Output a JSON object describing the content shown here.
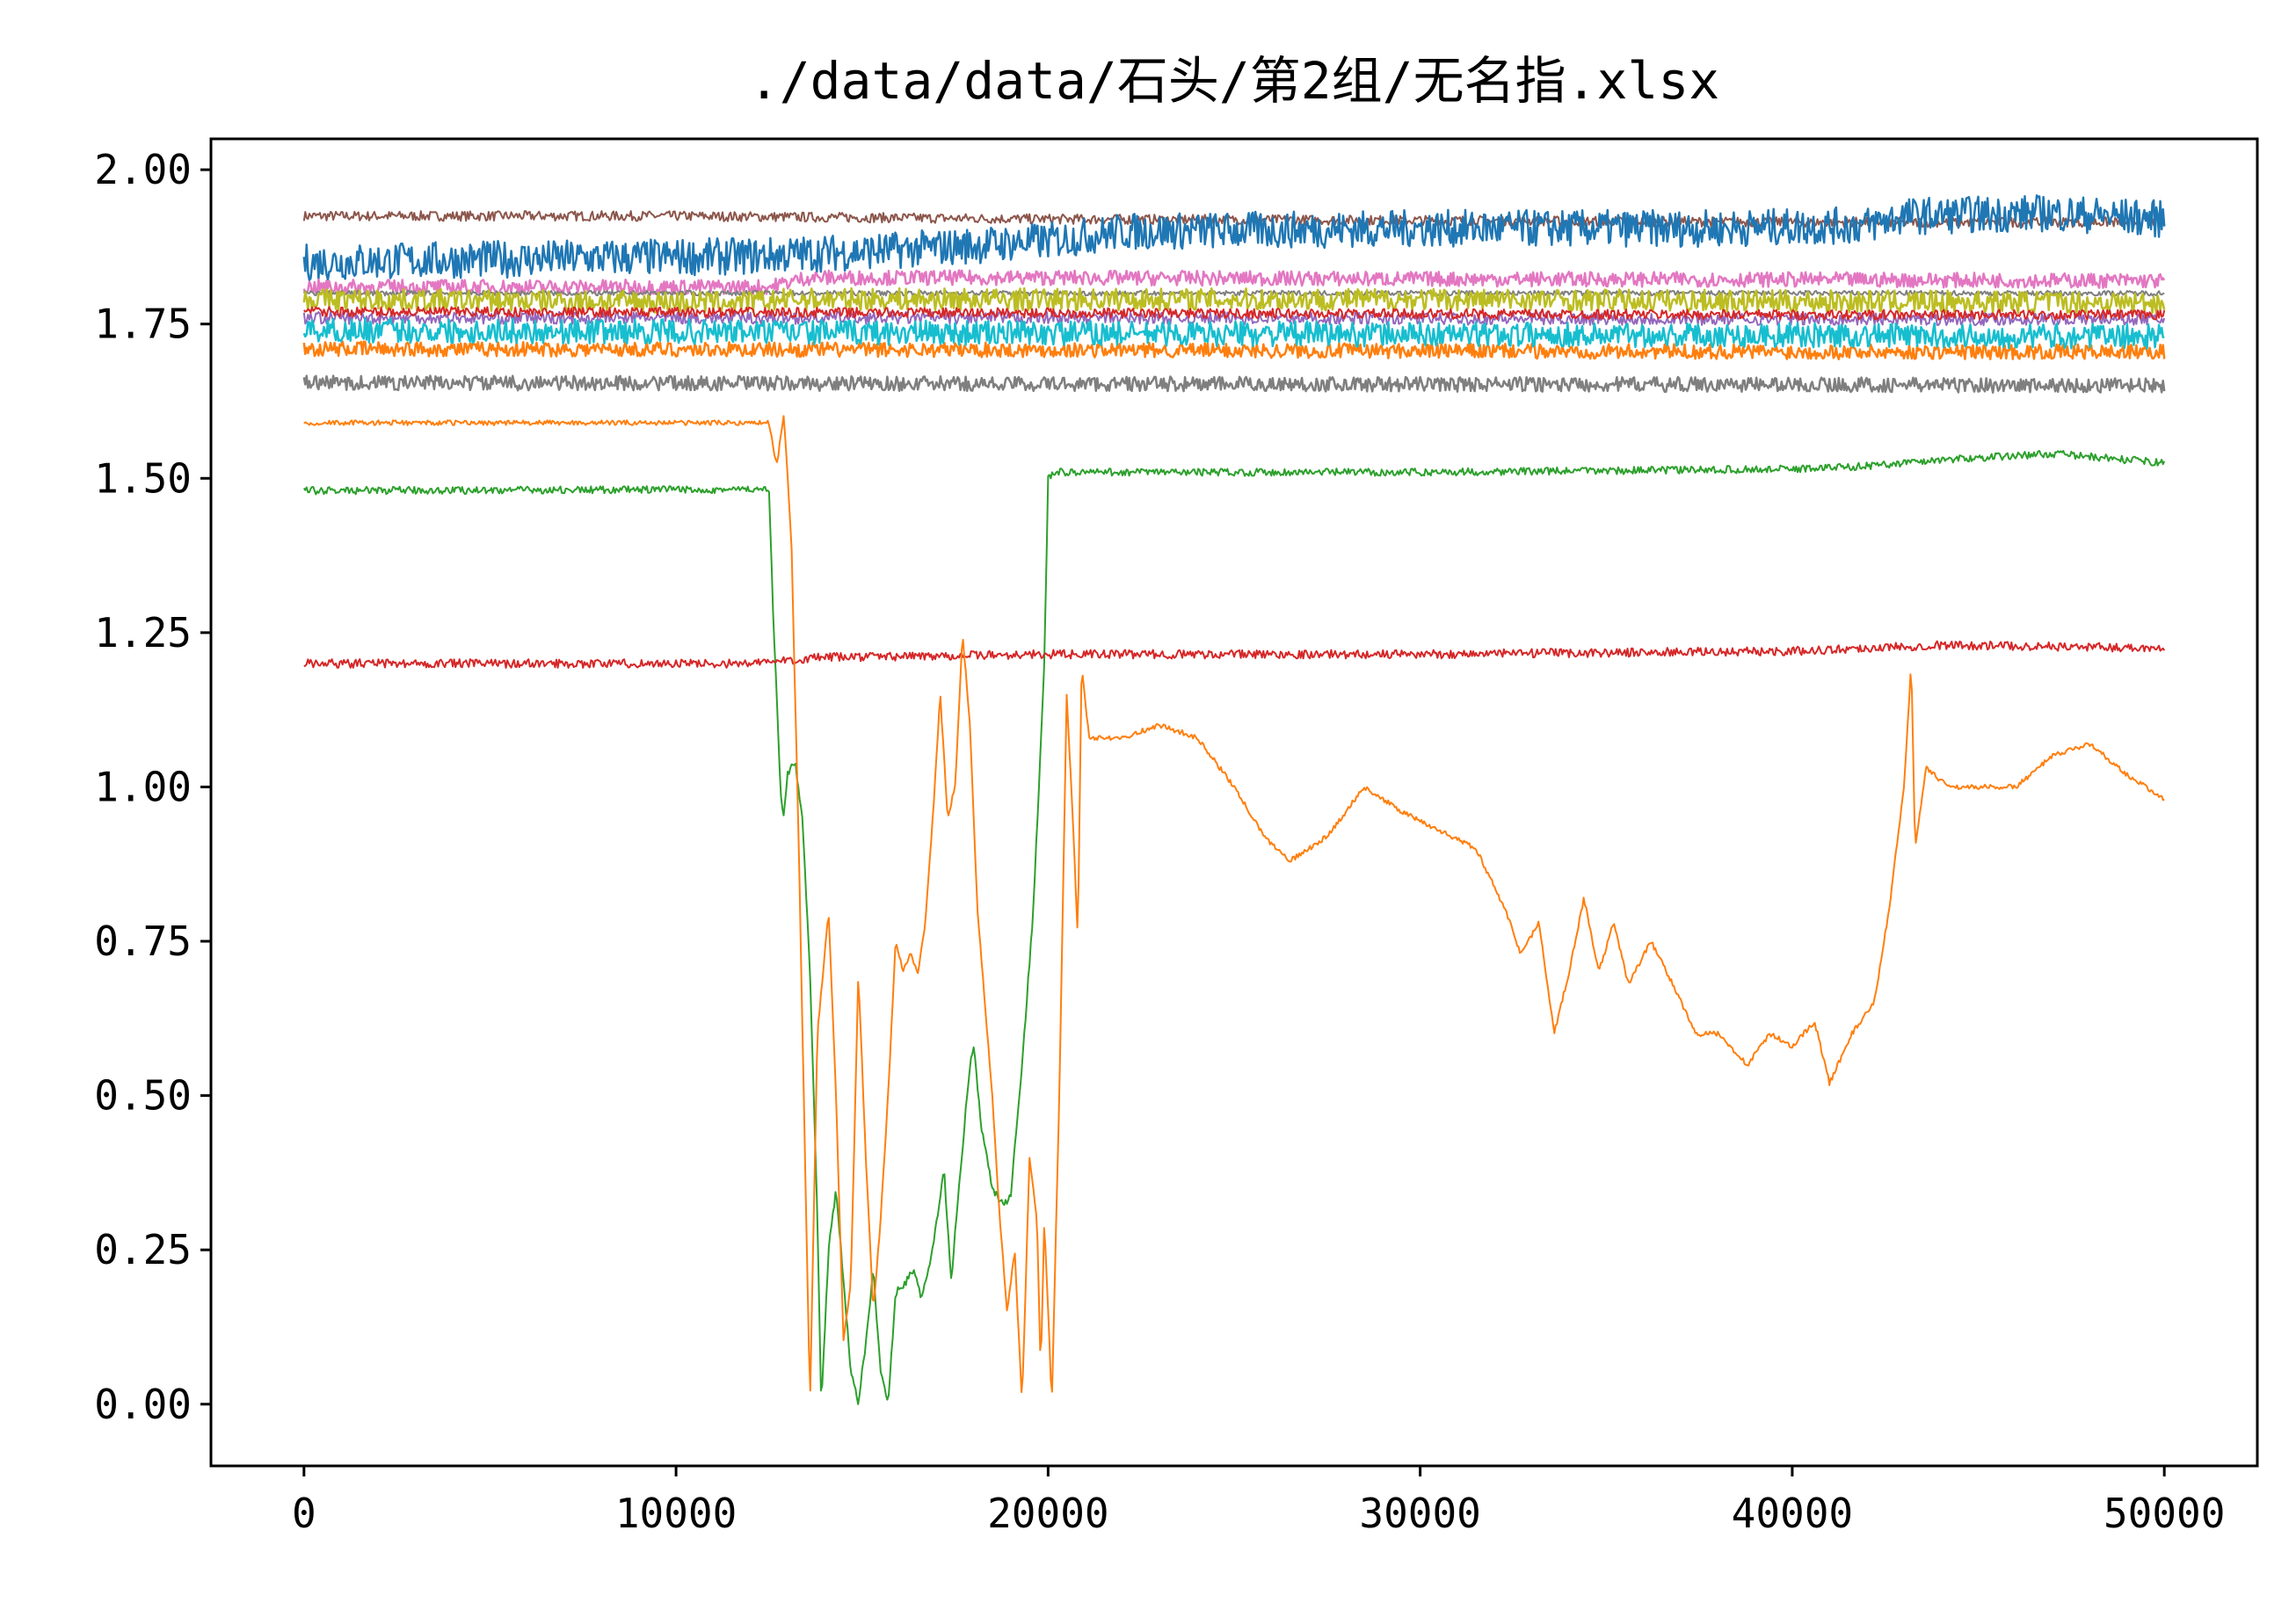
{
  "chart_data": {
    "type": "line",
    "title": "./data/data/石头/第2组/无名指.xlsx",
    "xlabel": "",
    "ylabel": "",
    "xlim": [
      -2500,
      52500
    ],
    "ylim": [
      -0.1,
      2.05
    ],
    "x_ticks": [
      0,
      10000,
      20000,
      30000,
      40000,
      50000
    ],
    "x_tick_labels": [
      "0",
      "10000",
      "20000",
      "30000",
      "40000",
      "50000"
    ],
    "y_ticks": [
      0,
      0.25,
      0.5,
      0.75,
      1.0,
      1.25,
      1.5,
      1.75,
      2.0
    ],
    "y_tick_labels": [
      "0.00",
      "0.25",
      "0.50",
      "0.75",
      "1.00",
      "1.25",
      "1.50",
      "1.75",
      "2.00"
    ],
    "grid": false,
    "legend": "none",
    "series": [
      {
        "color": "#8c564b",
        "noise": 0.008,
        "points": [
          [
            0,
            1.925
          ],
          [
            10000,
            1.925
          ],
          [
            20000,
            1.92
          ],
          [
            30000,
            1.918
          ],
          [
            40000,
            1.915
          ],
          [
            50000,
            1.915
          ]
        ]
      },
      {
        "color": "#1f77b4",
        "noise": 0.03,
        "points": [
          [
            0,
            1.85
          ],
          [
            5000,
            1.855
          ],
          [
            12000,
            1.86
          ],
          [
            16000,
            1.87
          ],
          [
            20000,
            1.885
          ],
          [
            22000,
            1.9
          ],
          [
            30000,
            1.905
          ],
          [
            38000,
            1.905
          ],
          [
            42000,
            1.91
          ],
          [
            43000,
            1.925
          ],
          [
            47000,
            1.93
          ],
          [
            50000,
            1.92
          ]
        ]
      },
      {
        "color": "#e377c2",
        "noise": 0.012,
        "points": [
          [
            0,
            1.81
          ],
          [
            12500,
            1.81
          ],
          [
            13500,
            1.825
          ],
          [
            20000,
            1.825
          ],
          [
            30000,
            1.823
          ],
          [
            40000,
            1.822
          ],
          [
            50000,
            1.82
          ]
        ]
      },
      {
        "color": "#7f7f7f",
        "noise": 0.004,
        "points": [
          [
            0,
            1.8
          ],
          [
            20000,
            1.8
          ],
          [
            40000,
            1.8
          ],
          [
            50000,
            1.8
          ]
        ]
      },
      {
        "color": "#bcbd22",
        "noise": 0.018,
        "points": [
          [
            0,
            1.79
          ],
          [
            12000,
            1.785
          ],
          [
            13000,
            1.79
          ],
          [
            20000,
            1.79
          ],
          [
            30000,
            1.79
          ],
          [
            40000,
            1.787
          ],
          [
            50000,
            1.785
          ]
        ]
      },
      {
        "color": "#9467bd",
        "noise": 0.01,
        "points": [
          [
            0,
            1.76
          ],
          [
            20000,
            1.76
          ],
          [
            40000,
            1.758
          ],
          [
            50000,
            1.758
          ]
        ]
      },
      {
        "color": "#d62728",
        "noise": 0.008,
        "points": [
          [
            0,
            1.77
          ],
          [
            20000,
            1.768
          ],
          [
            40000,
            1.765
          ],
          [
            50000,
            1.765
          ]
        ]
      },
      {
        "color": "#ff7f0e",
        "noise": 0.012,
        "points": [
          [
            0,
            1.71
          ],
          [
            20000,
            1.708
          ],
          [
            40000,
            1.705
          ],
          [
            50000,
            1.705
          ]
        ]
      },
      {
        "color": "#17becf",
        "noise": 0.02,
        "points": [
          [
            0,
            1.74
          ],
          [
            20000,
            1.735
          ],
          [
            40000,
            1.732
          ],
          [
            50000,
            1.73
          ]
        ]
      },
      {
        "color": "#7f7f7f",
        "noise": 0.012,
        "points": [
          [
            0,
            1.655
          ],
          [
            20000,
            1.653
          ],
          [
            40000,
            1.652
          ],
          [
            50000,
            1.65
          ]
        ]
      },
      {
        "color": "#2ca02c",
        "noise": 0.006,
        "points": [
          [
            0,
            1.48
          ],
          [
            12000,
            1.482
          ],
          [
            12500,
            1.48
          ],
          [
            12600,
            1.3
          ],
          [
            12800,
            1.0
          ],
          [
            12900,
            0.95
          ],
          [
            13000,
            1.02
          ],
          [
            13200,
            1.04
          ],
          [
            13400,
            0.95
          ],
          [
            13600,
            0.7
          ],
          [
            13800,
            0.3
          ],
          [
            13900,
            0.0
          ],
          [
            14100,
            0.25
          ],
          [
            14300,
            0.35
          ],
          [
            14500,
            0.2
          ],
          [
            14700,
            0.05
          ],
          [
            14900,
            0.0
          ],
          [
            15100,
            0.1
          ],
          [
            15300,
            0.22
          ],
          [
            15500,
            0.05
          ],
          [
            15700,
            0.0
          ],
          [
            15900,
            0.18
          ],
          [
            16200,
            0.2
          ],
          [
            16400,
            0.22
          ],
          [
            16600,
            0.17
          ],
          [
            16900,
            0.25
          ],
          [
            17200,
            0.38
          ],
          [
            17400,
            0.2
          ],
          [
            17600,
            0.35
          ],
          [
            17900,
            0.55
          ],
          [
            18000,
            0.58
          ],
          [
            18200,
            0.45
          ],
          [
            18500,
            0.35
          ],
          [
            18800,
            0.32
          ],
          [
            19000,
            0.34
          ],
          [
            19300,
            0.55
          ],
          [
            19600,
            0.8
          ],
          [
            19900,
            1.2
          ],
          [
            20000,
            1.5
          ],
          [
            20200,
            1.51
          ],
          [
            25000,
            1.51
          ],
          [
            30000,
            1.51
          ],
          [
            40000,
            1.515
          ],
          [
            42000,
            1.52
          ],
          [
            44000,
            1.53
          ],
          [
            47000,
            1.54
          ],
          [
            50000,
            1.525
          ]
        ]
      },
      {
        "color": "#d62728",
        "noise": 0.007,
        "points": [
          [
            0,
            1.2
          ],
          [
            12000,
            1.2
          ],
          [
            13000,
            1.205
          ],
          [
            14000,
            1.21
          ],
          [
            20000,
            1.215
          ],
          [
            30000,
            1.215
          ],
          [
            40000,
            1.22
          ],
          [
            42000,
            1.225
          ],
          [
            44000,
            1.23
          ],
          [
            50000,
            1.225
          ]
        ]
      },
      {
        "color": "#ff7f0e",
        "noise": 0.004,
        "points": [
          [
            0,
            1.59
          ],
          [
            12000,
            1.59
          ],
          [
            12500,
            1.59
          ],
          [
            12700,
            1.52
          ],
          [
            12900,
            1.6
          ],
          [
            13100,
            1.4
          ],
          [
            13300,
            0.9
          ],
          [
            13500,
            0.3
          ],
          [
            13600,
            0.0
          ],
          [
            13800,
            0.6
          ],
          [
            14100,
            0.8
          ],
          [
            14300,
            0.5
          ],
          [
            14500,
            0.1
          ],
          [
            14700,
            0.2
          ],
          [
            14900,
            0.7
          ],
          [
            15100,
            0.4
          ],
          [
            15300,
            0.15
          ],
          [
            15500,
            0.3
          ],
          [
            15700,
            0.5
          ],
          [
            15900,
            0.75
          ],
          [
            16100,
            0.7
          ],
          [
            16300,
            0.73
          ],
          [
            16500,
            0.7
          ],
          [
            16700,
            0.78
          ],
          [
            16900,
            0.95
          ],
          [
            17100,
            1.15
          ],
          [
            17300,
            0.95
          ],
          [
            17500,
            1.0
          ],
          [
            17700,
            1.25
          ],
          [
            17900,
            1.1
          ],
          [
            18100,
            0.8
          ],
          [
            18300,
            0.65
          ],
          [
            18500,
            0.5
          ],
          [
            18700,
            0.3
          ],
          [
            18900,
            0.15
          ],
          [
            19100,
            0.25
          ],
          [
            19300,
            0.0
          ],
          [
            19500,
            0.4
          ],
          [
            19700,
            0.3
          ],
          [
            19800,
            0.05
          ],
          [
            19900,
            0.3
          ],
          [
            20100,
            0.0
          ],
          [
            20300,
            0.5
          ],
          [
            20500,
            1.15
          ],
          [
            20700,
            0.9
          ],
          [
            20800,
            0.75
          ],
          [
            20900,
            1.2
          ],
          [
            21100,
            1.08
          ],
          [
            22000,
            1.08
          ],
          [
            23000,
            1.1
          ],
          [
            24000,
            1.08
          ],
          [
            25000,
            1.0
          ],
          [
            25800,
            0.92
          ],
          [
            26500,
            0.88
          ],
          [
            27500,
            0.92
          ],
          [
            28500,
            1.0
          ],
          [
            29500,
            0.96
          ],
          [
            30500,
            0.93
          ],
          [
            31500,
            0.9
          ],
          [
            32300,
            0.8
          ],
          [
            32700,
            0.73
          ],
          [
            33200,
            0.78
          ],
          [
            33600,
            0.6
          ],
          [
            34000,
            0.7
          ],
          [
            34400,
            0.82
          ],
          [
            34800,
            0.7
          ],
          [
            35200,
            0.78
          ],
          [
            35600,
            0.68
          ],
          [
            36200,
            0.75
          ],
          [
            36800,
            0.68
          ],
          [
            37400,
            0.6
          ],
          [
            38000,
            0.6
          ],
          [
            38800,
            0.55
          ],
          [
            39400,
            0.6
          ],
          [
            40000,
            0.58
          ],
          [
            40600,
            0.62
          ],
          [
            41000,
            0.52
          ],
          [
            41600,
            0.6
          ],
          [
            42200,
            0.65
          ],
          [
            42600,
            0.8
          ],
          [
            43000,
            1.0
          ],
          [
            43200,
            1.2
          ],
          [
            43300,
            0.9
          ],
          [
            43600,
            1.03
          ],
          [
            44200,
            1.0
          ],
          [
            45000,
            1.0
          ],
          [
            46000,
            1.0
          ],
          [
            47000,
            1.05
          ],
          [
            48000,
            1.07
          ],
          [
            49000,
            1.02
          ],
          [
            50000,
            0.98
          ]
        ]
      }
    ]
  }
}
